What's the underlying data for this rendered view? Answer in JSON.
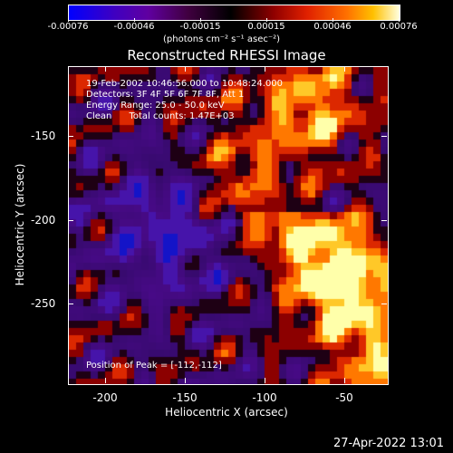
{
  "colorbar": {
    "ticks": [
      "-0.00076",
      "-0.00046",
      "-0.00015",
      "0.00015",
      "0.00046",
      "0.00076"
    ],
    "unit": "(photons cm⁻² s⁻¹ asec⁻²)"
  },
  "title": "Reconstructed RHESSI Image",
  "info": {
    "time": "19-Feb-2002 10:46:56.000 to 10:48:24.000",
    "detectors": "Detectors: 3F 4F 5F 6F 7F 8F, Att 1",
    "energy": "Energy Range: 25.0 - 50.0 keV",
    "clean": "Clean      Total counts: 1.47E+03",
    "peak": "Position of Peak = [-112,-112]"
  },
  "axes": {
    "xlabel": "Heliocentric X (arcsec)",
    "ylabel": "Heliocentric Y (arcsec)",
    "xticks": [
      "-200",
      "-150",
      "-100",
      "-50"
    ],
    "yticks": [
      "-150",
      "-200",
      "-250"
    ]
  },
  "timestamp": "27-Apr-2022 13:01",
  "colors": {
    "negative": "#0000ff",
    "zero": "#000000",
    "positive_low": "#b00000",
    "positive_mid": "#ff7000",
    "positive_high": "#ffff80"
  }
}
